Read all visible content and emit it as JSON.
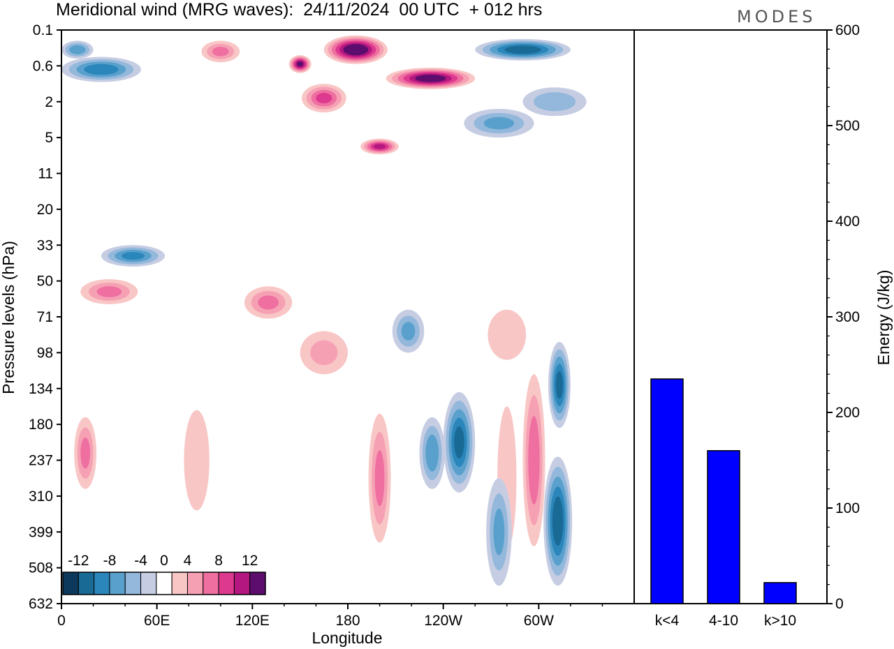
{
  "chart_data": {
    "type": "heatmap",
    "title": "Meridional wind (MRG waves):  24/11/2024  00 UTC  + 012 hrs",
    "logo": "MODES",
    "xlabel": "Longitude",
    "ylabel": "Pressure levels (hPa)",
    "x_ticks": [
      "0",
      "60E",
      "120E",
      "180",
      "120W",
      "60W"
    ],
    "x_tick_values": [
      0,
      60,
      120,
      180,
      240,
      300
    ],
    "xlim": [
      0,
      360
    ],
    "y_ticks": [
      "0.1",
      "0.6",
      "2",
      "5",
      "11",
      "20",
      "33",
      "50",
      "71",
      "98",
      "134",
      "180",
      "237",
      "310",
      "399",
      "508",
      "632"
    ],
    "colorbar": {
      "labels": [
        "-12",
        "-8",
        "-4",
        "0",
        "4",
        "8",
        "12"
      ],
      "levels": [
        -14,
        -12,
        -10,
        -8,
        -6,
        -4,
        -2,
        2,
        4,
        6,
        8,
        10,
        12,
        14
      ],
      "colors": [
        "#0d3a5c",
        "#1a6a96",
        "#2b86bb",
        "#5aa0cc",
        "#93b8db",
        "#c6cde3",
        "#ffffff",
        "#f9c6c6",
        "#f6a0b4",
        "#ee6fa0",
        "#dd3a8f",
        "#b51780",
        "#5c0d6e"
      ]
    },
    "contour_blobs": [
      {
        "lon": 185,
        "lev": 0.55,
        "w": 20,
        "h": 0.4,
        "v": 14
      },
      {
        "lon": 150,
        "lev": 0.95,
        "w": 7,
        "h": 0.25,
        "v": 12
      },
      {
        "lon": 232,
        "lev": 1.35,
        "w": 28,
        "h": 0.3,
        "v": 13
      },
      {
        "lon": 200,
        "lev": 3.25,
        "w": 12,
        "h": 0.22,
        "v": 10
      },
      {
        "lon": 165,
        "lev": 1.9,
        "w": 14,
        "h": 0.4,
        "v": 8
      },
      {
        "lon": 100,
        "lev": 0.6,
        "w": 12,
        "h": 0.3,
        "v": 6
      },
      {
        "lon": 290,
        "lev": 0.55,
        "w": 30,
        "h": 0.3,
        "v": -11
      },
      {
        "lon": 25,
        "lev": 1.1,
        "w": 25,
        "h": 0.35,
        "v": -9
      },
      {
        "lon": 10,
        "lev": 0.55,
        "w": 10,
        "h": 0.25,
        "v": -7
      },
      {
        "lon": 45,
        "lev": 6.3,
        "w": 20,
        "h": 0.3,
        "v": -8
      },
      {
        "lon": 30,
        "lev": 7.3,
        "w": 18,
        "h": 0.35,
        "v": 6
      },
      {
        "lon": 130,
        "lev": 7.6,
        "w": 15,
        "h": 0.45,
        "v": 6
      },
      {
        "lon": 310,
        "lev": 2.0,
        "w": 20,
        "h": 0.4,
        "v": -5
      },
      {
        "lon": 275,
        "lev": 2.6,
        "w": 22,
        "h": 0.4,
        "v": -6
      },
      {
        "lon": 250,
        "lev": 11.5,
        "w": 10,
        "h": 1.4,
        "v": -10
      },
      {
        "lon": 233,
        "lev": 11.8,
        "w": 8,
        "h": 1.0,
        "v": -7
      },
      {
        "lon": 313,
        "lev": 9.9,
        "w": 7,
        "h": 1.2,
        "v": -10
      },
      {
        "lon": 312,
        "lev": 13.7,
        "w": 9,
        "h": 1.8,
        "v": -11
      },
      {
        "lon": 297,
        "lev": 12.0,
        "w": 7,
        "h": 2.4,
        "v": 7
      },
      {
        "lon": 280,
        "lev": 12.5,
        "w": 6,
        "h": 2.0,
        "v": 3
      },
      {
        "lon": 200,
        "lev": 12.5,
        "w": 7,
        "h": 1.8,
        "v": 6
      },
      {
        "lon": 15,
        "lev": 11.8,
        "w": 7,
        "h": 1.0,
        "v": 6
      },
      {
        "lon": 85,
        "lev": 12.0,
        "w": 8,
        "h": 1.4,
        "v": 3
      },
      {
        "lon": 275,
        "lev": 14.0,
        "w": 8,
        "h": 1.5,
        "v": -6
      },
      {
        "lon": 165,
        "lev": 9.0,
        "w": 15,
        "h": 0.6,
        "v": 4
      },
      {
        "lon": 280,
        "lev": 8.5,
        "w": 12,
        "h": 0.7,
        "v": 3
      },
      {
        "lon": 218,
        "lev": 8.4,
        "w": 10,
        "h": 0.6,
        "v": -6
      }
    ],
    "energy_bars": {
      "type": "bar",
      "ylabel": "Energy (J/kg)",
      "ylim": [
        0,
        600
      ],
      "y_ticks": [
        0,
        100,
        200,
        300,
        400,
        500,
        600
      ],
      "categories": [
        "k<4",
        "4-10",
        "k>10"
      ],
      "values": [
        235,
        160,
        22
      ],
      "color": "#0000ff"
    }
  }
}
